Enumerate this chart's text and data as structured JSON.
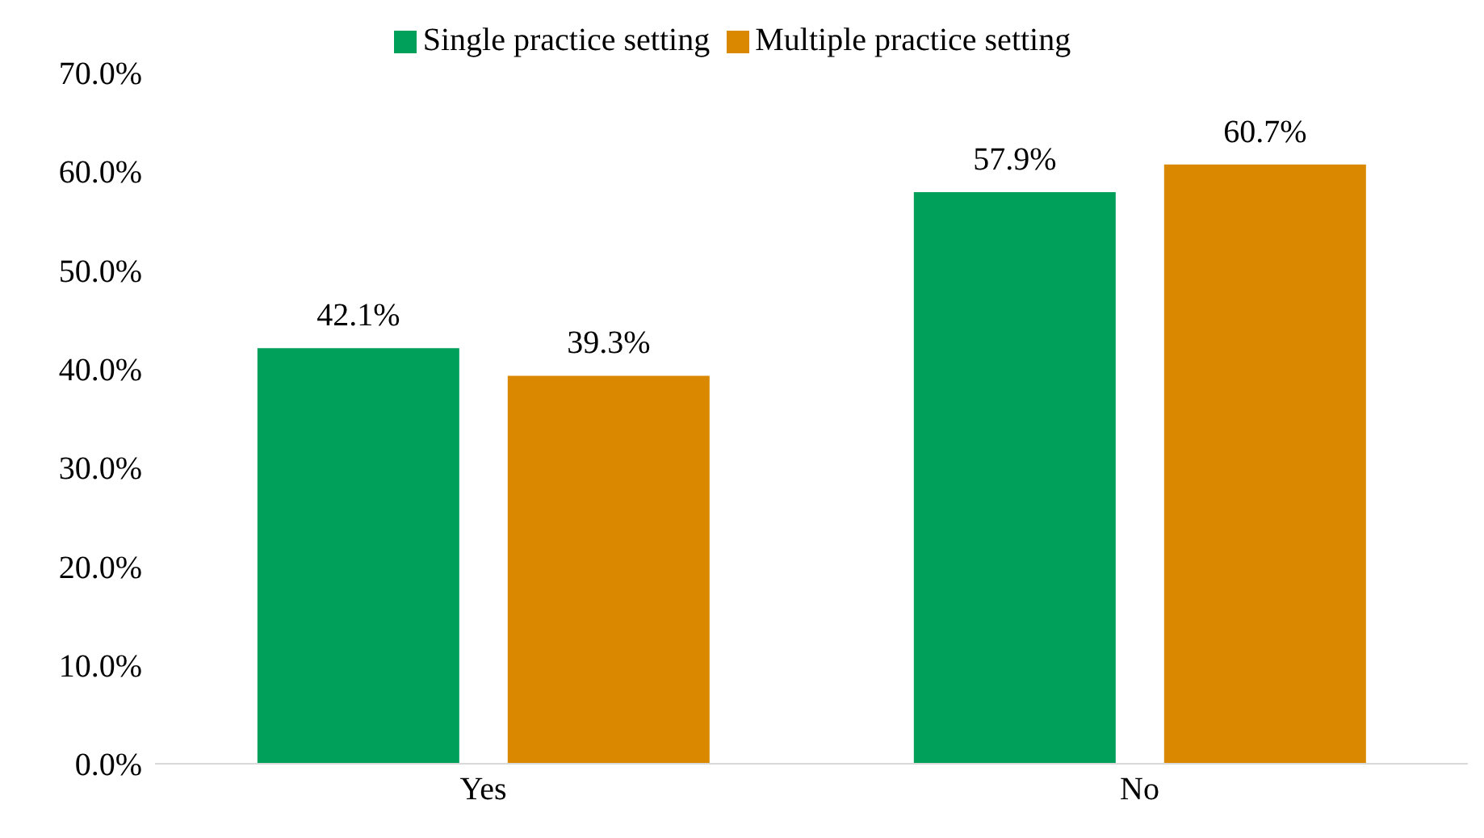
{
  "chart_data": {
    "type": "bar",
    "categories": [
      "Yes",
      "No"
    ],
    "series": [
      {
        "name": "Single practice setting",
        "color": "#00a05a",
        "values": [
          42.1,
          57.9
        ],
        "value_labels": [
          "42.1%",
          "57.9%"
        ]
      },
      {
        "name": "Multiple practice setting",
        "color": "#d98800",
        "values": [
          39.3,
          60.7
        ],
        "value_labels": [
          "39.3%",
          "60.7%"
        ]
      }
    ],
    "ylim": [
      0,
      70
    ],
    "yticks": [
      {
        "value": 0,
        "label": "0.0%"
      },
      {
        "value": 10,
        "label": "10.0%"
      },
      {
        "value": 20,
        "label": "20.0%"
      },
      {
        "value": 30,
        "label": "30.0%"
      },
      {
        "value": 40,
        "label": "40.0%"
      },
      {
        "value": 50,
        "label": "50.0%"
      },
      {
        "value": 60,
        "label": "60.0%"
      },
      {
        "value": 70,
        "label": "70.0%"
      }
    ],
    "grid": false,
    "legend": "top"
  }
}
